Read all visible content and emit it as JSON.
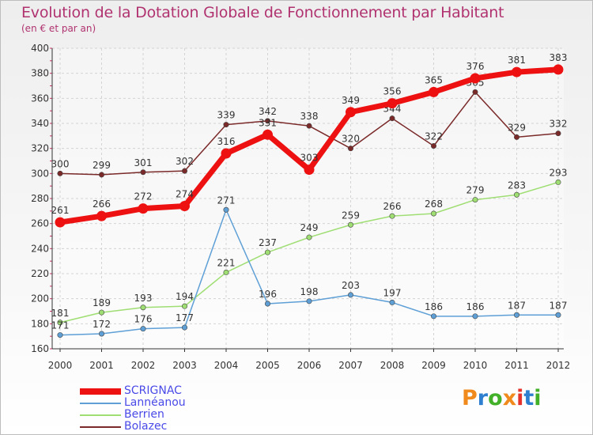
{
  "header": {
    "title": "Evolution de la Dotation Globale de Fonctionnement par Habitant",
    "subtitle": "(en € et par an)"
  },
  "logo": {
    "text": "Proxiti",
    "colors": [
      "#f08a1c",
      "#2e7fd0",
      "#43b02a",
      "#f08a1c",
      "#e5312c",
      "#2e7fd0",
      "#43b02a"
    ]
  },
  "chart_data": {
    "type": "line",
    "x": [
      "2000",
      "2001",
      "2002",
      "2003",
      "2004",
      "2005",
      "2006",
      "2007",
      "2008",
      "2009",
      "2010",
      "2011",
      "2012"
    ],
    "ylim": [
      160,
      400
    ],
    "yticks": [
      "160",
      "180",
      "200",
      "220",
      "240",
      "260",
      "280",
      "300",
      "320",
      "340",
      "360",
      "380",
      "400"
    ],
    "grid": true,
    "legend_position": "bottom-left",
    "series": [
      {
        "name": "Bolazec",
        "color": "#7b2a2a",
        "values": [
          300,
          299,
          301,
          302,
          339,
          342,
          338,
          320,
          344,
          322,
          365,
          329,
          332
        ]
      },
      {
        "name": "Berrien",
        "color": "#9fde73",
        "values": [
          181,
          189,
          193,
          194,
          221,
          237,
          249,
          259,
          266,
          268,
          279,
          283,
          293
        ]
      },
      {
        "name": "Lannéanou",
        "color": "#5e9fd6",
        "values": [
          171,
          172,
          176,
          177,
          271,
          196,
          198,
          203,
          197,
          186,
          186,
          187,
          187
        ]
      },
      {
        "name": "SCRIGNAC",
        "color": "#ee1111",
        "values": [
          261,
          266,
          272,
          274,
          316,
          331,
          303,
          349,
          356,
          365,
          376,
          381,
          383
        ]
      }
    ],
    "legend_order": [
      "SCRIGNAC",
      "Lannéanou",
      "Berrien",
      "Bolazec"
    ]
  }
}
